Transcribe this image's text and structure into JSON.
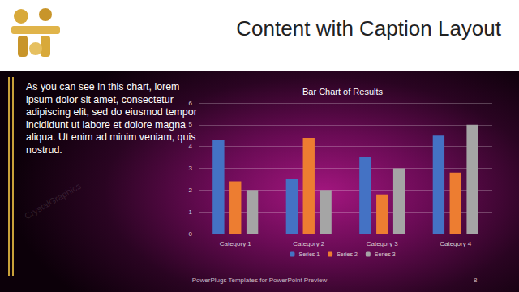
{
  "slide": {
    "title": "Content with Caption Layout",
    "caption": "As you can see in this chart, lorem ipsum dolor sit amet, consectetur adipiscing elit, sed do eiusmod tempor incididunt ut labore et dolore magna aliqua. Ut enim ad minim veniam, quis nostrud.",
    "footer": "PowerPlugs Templates for PowerPoint Preview",
    "page_number": 8,
    "watermark": "CrystalGraphics"
  },
  "chart_data": {
    "type": "bar",
    "title": "Bar Chart of Results",
    "categories": [
      "Category 1",
      "Category 2",
      "Category 3",
      "Category 4"
    ],
    "series": [
      {
        "name": "Series 1",
        "color": "#4472c4",
        "values": [
          4.3,
          2.5,
          3.5,
          4.5
        ]
      },
      {
        "name": "Series 2",
        "color": "#ed7d31",
        "values": [
          2.4,
          4.4,
          1.8,
          2.8
        ]
      },
      {
        "name": "Series 3",
        "color": "#a5a5a5",
        "values": [
          2.0,
          2.0,
          3.0,
          5.0
        ]
      }
    ],
    "ylim": [
      0,
      6
    ],
    "yticks": [
      0,
      1,
      2,
      3,
      4,
      5,
      6
    ],
    "grid": true,
    "legend": "bottom"
  }
}
